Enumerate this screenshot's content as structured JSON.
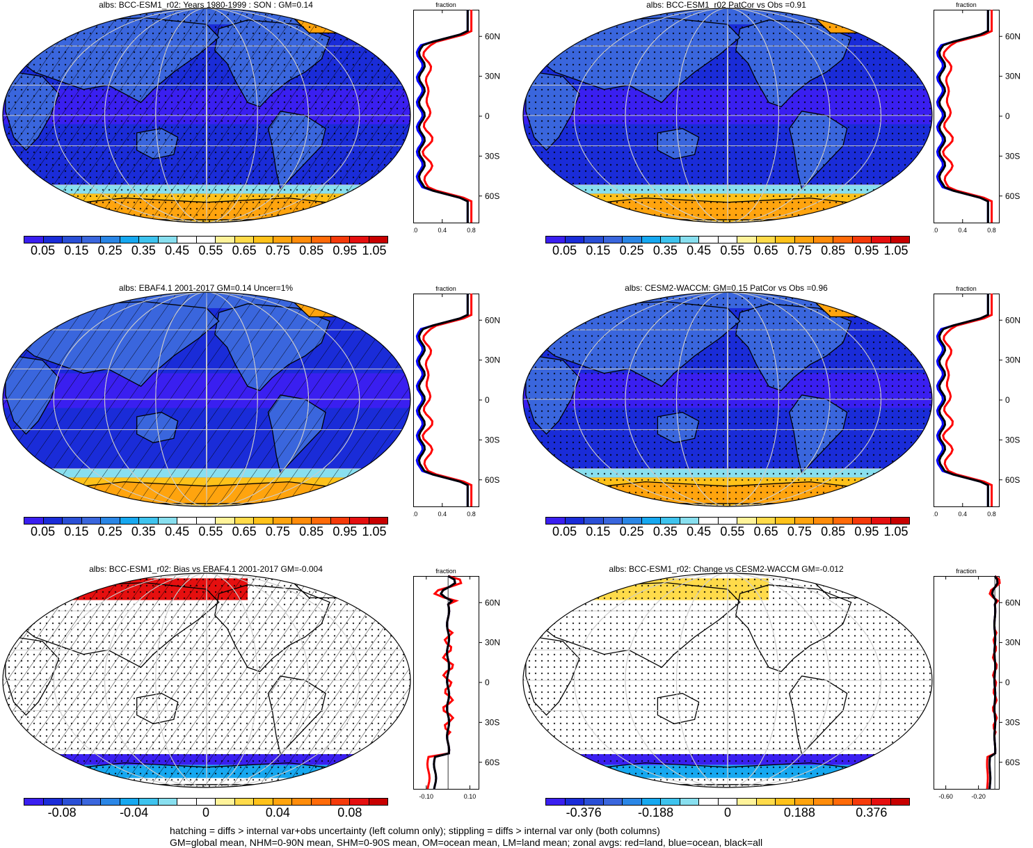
{
  "panels": [
    {
      "title": "albs: BCC-ESM1_r02: Years 1980-1999 : SON : GM=0.14",
      "kind": "mean",
      "hatch": true,
      "stipple": true,
      "zonal_axis": {
        "label": "fraction",
        "ticks": [
          "0.0",
          "0.4",
          "0.8"
        ]
      },
      "lat_ticks": [
        "60N",
        "30N",
        "0",
        "30S",
        "60S"
      ],
      "colorbar": {
        "colors": [
          "#3a1ff0",
          "#1a2cd8",
          "#2a4fd6",
          "#3a66dd",
          "#2a86e6",
          "#16a8f0",
          "#3ec3ee",
          "#88dfef",
          "#ffffff",
          "#ffffff",
          "#fff39a",
          "#ffdb4a",
          "#ffc21a",
          "#ffa40e",
          "#ff8c0a",
          "#ff6a08",
          "#f53a0a",
          "#e50f0f",
          "#c80000"
        ],
        "labels": [
          "0.05",
          "0.15",
          "0.25",
          "0.35",
          "0.45",
          "0.55",
          "0.65",
          "0.75",
          "0.85",
          "0.95",
          "1.05"
        ]
      }
    },
    {
      "title": "albs: BCC-ESM1_r02 PatCor vs Obs =0.91",
      "kind": "mean",
      "hatch": false,
      "stipple": true,
      "zonal_axis": {
        "label": "fraction",
        "ticks": [
          "0.0",
          "0.4",
          "0.8"
        ]
      },
      "lat_ticks": [
        "60N",
        "30N",
        "0",
        "30S",
        "60S"
      ],
      "colorbar": {
        "colors": [
          "#3a1ff0",
          "#1a2cd8",
          "#2a4fd6",
          "#3a66dd",
          "#2a86e6",
          "#16a8f0",
          "#3ec3ee",
          "#88dfef",
          "#ffffff",
          "#ffffff",
          "#fff39a",
          "#ffdb4a",
          "#ffc21a",
          "#ffa40e",
          "#ff8c0a",
          "#ff6a08",
          "#f53a0a",
          "#e50f0f",
          "#c80000"
        ],
        "labels": [
          "0.05",
          "0.15",
          "0.25",
          "0.35",
          "0.45",
          "0.55",
          "0.65",
          "0.75",
          "0.85",
          "0.95",
          "1.05"
        ]
      }
    },
    {
      "title": "albs: EBAF4.1 2001-2017 GM=0.14 Uncer=1%",
      "kind": "mean",
      "hatch": true,
      "stipple": false,
      "zonal_axis": {
        "label": "fraction",
        "ticks": [
          "0.0",
          "0.4",
          "0.8"
        ]
      },
      "lat_ticks": [
        "60N",
        "30N",
        "0",
        "30S",
        "60S"
      ],
      "colorbar": {
        "colors": [
          "#3a1ff0",
          "#1a2cd8",
          "#2a4fd6",
          "#3a66dd",
          "#2a86e6",
          "#16a8f0",
          "#3ec3ee",
          "#88dfef",
          "#ffffff",
          "#ffffff",
          "#fff39a",
          "#ffdb4a",
          "#ffc21a",
          "#ffa40e",
          "#ff8c0a",
          "#ff6a08",
          "#f53a0a",
          "#e50f0f",
          "#c80000"
        ],
        "labels": [
          "0.05",
          "0.15",
          "0.25",
          "0.35",
          "0.45",
          "0.55",
          "0.65",
          "0.75",
          "0.85",
          "0.95",
          "1.05"
        ]
      }
    },
    {
      "title": "albs: CESM2-WACCM: GM=0.15 PatCor vs Obs =0.96",
      "kind": "mean",
      "hatch": false,
      "stipple": true,
      "zonal_axis": {
        "label": "fraction",
        "ticks": [
          "0.0",
          "0.4",
          "0.8"
        ]
      },
      "lat_ticks": [
        "60N",
        "30N",
        "0",
        "30S",
        "60S"
      ],
      "colorbar": {
        "colors": [
          "#3a1ff0",
          "#1a2cd8",
          "#2a4fd6",
          "#3a66dd",
          "#2a86e6",
          "#16a8f0",
          "#3ec3ee",
          "#88dfef",
          "#ffffff",
          "#ffffff",
          "#fff39a",
          "#ffdb4a",
          "#ffc21a",
          "#ffa40e",
          "#ff8c0a",
          "#ff6a08",
          "#f53a0a",
          "#e50f0f",
          "#c80000"
        ],
        "labels": [
          "0.05",
          "0.15",
          "0.25",
          "0.35",
          "0.45",
          "0.55",
          "0.65",
          "0.75",
          "0.85",
          "0.95",
          "1.05"
        ]
      }
    },
    {
      "title": "albs: BCC-ESM1_r02: Bias vs EBAF4.1 2001-2017  GM=-0.004",
      "kind": "diff",
      "hatch": true,
      "stipple": true,
      "zonal_axis": {
        "label": "fraction",
        "ticks": [
          "-0.10",
          "0.10"
        ]
      },
      "lat_ticks": [
        "60N",
        "30N",
        "0",
        "30S",
        "60S"
      ],
      "colorbar": {
        "colors": [
          "#3a1ff0",
          "#1a2cd8",
          "#2a4fd6",
          "#3a66dd",
          "#2a86e6",
          "#16a8f0",
          "#3ec3ee",
          "#88dfef",
          "#ffffff",
          "#ffffff",
          "#fff39a",
          "#ffdb4a",
          "#ffc21a",
          "#ffa40e",
          "#ff8c0a",
          "#ff6a08",
          "#f53a0a",
          "#e50f0f",
          "#c80000"
        ],
        "labels": [
          "-0.08",
          "-0.04",
          "0",
          "0.04",
          "0.08"
        ]
      }
    },
    {
      "title": "albs: BCC-ESM1_r02: Change vs CESM2-WACCM GM=-0.012",
      "kind": "diff",
      "hatch": false,
      "stipple": true,
      "zonal_axis": {
        "label": "fraction",
        "ticks": [
          "-0.60",
          "-0.20"
        ]
      },
      "lat_ticks": [
        "60N",
        "30N",
        "0",
        "30S",
        "60S"
      ],
      "colorbar": {
        "colors": [
          "#3a1ff0",
          "#1a2cd8",
          "#2a4fd6",
          "#3a66dd",
          "#2a86e6",
          "#16a8f0",
          "#3ec3ee",
          "#88dfef",
          "#ffffff",
          "#ffffff",
          "#fff39a",
          "#ffdb4a",
          "#ffc21a",
          "#ffa40e",
          "#ff8c0a",
          "#ff6a08",
          "#f53a0a",
          "#e50f0f",
          "#c80000"
        ],
        "labels": [
          "-0.376",
          "-0.188",
          "0",
          "0.188",
          "0.376"
        ]
      }
    }
  ],
  "footer": {
    "line1": "hatching = diffs > internal var+obs uncertainty (left column only); stippling = diffs > internal var only (both columns)",
    "line2": "GM=global mean, NHM=0-90N mean, SHM=0-90S mean, OM=ocean mean, LM=land mean; zonal avgs: red=land, blue=ocean, black=all"
  },
  "colors": {
    "land": "#ff0000",
    "ocean": "#0000ff",
    "all": "#000000"
  }
}
